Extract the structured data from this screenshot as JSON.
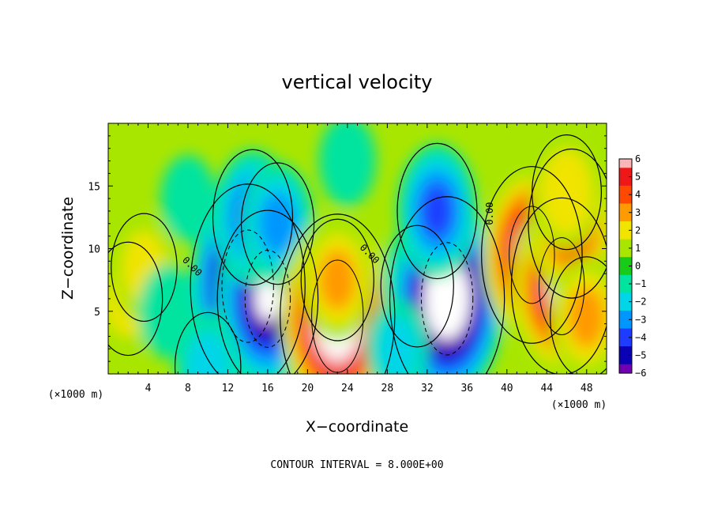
{
  "chart_data": {
    "type": "heatmap",
    "title": "vertical velocity",
    "xlabel": "X−coordinate",
    "ylabel": "Z−coordinate",
    "x_unit": "(×1000 m)",
    "y_unit": "(×1000 m)",
    "xlim": [
      0,
      50
    ],
    "ylim": [
      0,
      20
    ],
    "x_ticks": [
      4,
      8,
      12,
      16,
      20,
      24,
      28,
      32,
      36,
      40,
      44,
      48
    ],
    "x_tick_labels": [
      "4",
      "8",
      "12",
      "16",
      "20",
      "24",
      "28",
      "32",
      "36",
      "40",
      "44",
      "48"
    ],
    "y_ticks": [
      5,
      10,
      15
    ],
    "y_tick_labels": [
      "5",
      "10",
      "15"
    ],
    "contour_interval_text": "CONTOUR INTERVAL = 8.000E+00",
    "contour_labels": [
      {
        "text": "0.00",
        "x": 8.2,
        "y": 8.4
      },
      {
        "text": "0.00",
        "x": 26.0,
        "y": 9.4
      },
      {
        "text": "0.00",
        "x": 38.6,
        "y": 12.8
      }
    ],
    "colorbar": {
      "min": -6,
      "max": 6,
      "tick_labels": [
        "6",
        "5",
        "4",
        "3",
        "2",
        "1",
        "0",
        "−1",
        "−2",
        "−3",
        "−4",
        "−5",
        "−6"
      ],
      "colors": [
        "#f8b6b6",
        "#ee1818",
        "#ff4800",
        "#ff9a00",
        "#f0e400",
        "#a8e600",
        "#16cc16",
        "#00e4a0",
        "#00d6e8",
        "#0096ff",
        "#1e3cff",
        "#0a00b4",
        "#7000b0"
      ]
    },
    "features": [
      {
        "x": 2.0,
        "y": 6.0,
        "w": 2.4
      },
      {
        "x": 3.6,
        "y": 8.5,
        "w": 2.0
      },
      {
        "x": 6.0,
        "y": 5.0,
        "w": -1.0
      },
      {
        "x": 14.0,
        "y": 7.0,
        "w": -9.0
      },
      {
        "x": 16.0,
        "y": 6.0,
        "w": -7.0
      },
      {
        "x": 14.5,
        "y": 12.5,
        "w": -4.0
      },
      {
        "x": 17.0,
        "y": 12.0,
        "w": -3.0
      },
      {
        "x": 23.0,
        "y": 4.6,
        "w": 9.0
      },
      {
        "x": 23.0,
        "y": 7.5,
        "w": 3.0
      },
      {
        "x": 31.0,
        "y": 7.0,
        "w": -3.0
      },
      {
        "x": 34.0,
        "y": 6.0,
        "w": -9.0
      },
      {
        "x": 33.0,
        "y": 13.0,
        "w": -4.0
      },
      {
        "x": 42.5,
        "y": 9.5,
        "w": 7.0
      },
      {
        "x": 45.5,
        "y": 7.0,
        "w": 7.0
      },
      {
        "x": 46.5,
        "y": 12.0,
        "w": 5.0
      },
      {
        "x": 46.0,
        "y": 14.5,
        "w": 2.5
      },
      {
        "x": 48.0,
        "y": 4.5,
        "w": 3.0
      },
      {
        "x": 10.0,
        "y": 0.6,
        "w": -2.0
      },
      {
        "x": 29.0,
        "y": 2.0,
        "w": -1.5
      },
      {
        "x": 8.0,
        "y": 14.0,
        "w": -0.5
      },
      {
        "x": 24.0,
        "y": 17.0,
        "w": -0.8
      }
    ]
  }
}
